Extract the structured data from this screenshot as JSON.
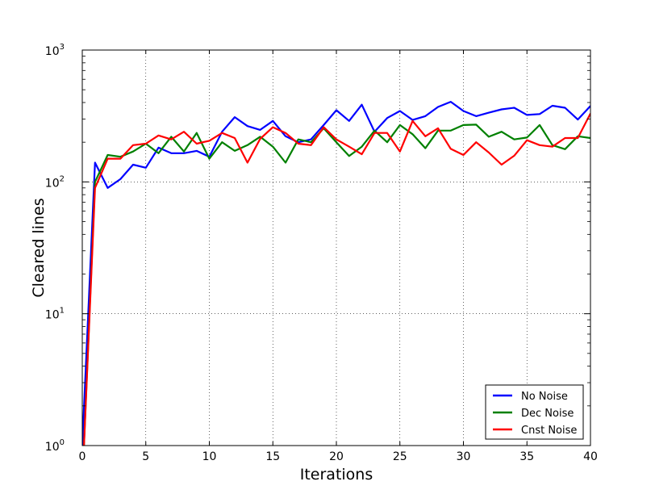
{
  "chart_data": {
    "type": "line",
    "xlabel": "Iterations",
    "ylabel": "Cleared lines",
    "xlim": [
      0,
      40
    ],
    "ylim": [
      1,
      1000
    ],
    "yscale": "log",
    "grid": true,
    "legend_position": "bottom-right",
    "x_ticks": [
      "0",
      "5",
      "10",
      "15",
      "20",
      "25",
      "30",
      "35",
      "40"
    ],
    "y_ticks": [
      {
        "base": "10",
        "exp": "0"
      },
      {
        "base": "10",
        "exp": "1"
      },
      {
        "base": "10",
        "exp": "2"
      },
      {
        "base": "10",
        "exp": "3"
      }
    ],
    "x": [
      0,
      1,
      2,
      3,
      4,
      5,
      6,
      7,
      8,
      9,
      10,
      11,
      12,
      13,
      14,
      15,
      16,
      17,
      18,
      19,
      20,
      21,
      22,
      23,
      24,
      25,
      26,
      27,
      28,
      29,
      30,
      31,
      32,
      33,
      34,
      35,
      36,
      37,
      38,
      39,
      40
    ],
    "series": [
      {
        "name": "No Noise",
        "color": "#0000ff",
        "values": [
          1,
          140,
          90,
          105,
          135,
          128,
          182,
          165,
          165,
          172,
          155,
          240,
          310,
          265,
          248,
          290,
          222,
          200,
          210,
          270,
          350,
          290,
          385,
          240,
          305,
          345,
          295,
          315,
          370,
          405,
          345,
          315,
          335,
          355,
          365,
          322,
          327,
          378,
          365,
          297,
          377
        ]
      },
      {
        "name": "Dec Noise",
        "color": "#008000",
        "values": [
          0.5,
          100,
          160,
          155,
          170,
          195,
          165,
          220,
          170,
          235,
          150,
          200,
          172,
          190,
          220,
          185,
          140,
          210,
          200,
          255,
          200,
          157,
          185,
          245,
          200,
          270,
          230,
          180,
          245,
          245,
          270,
          272,
          220,
          240,
          210,
          217,
          270,
          190,
          177,
          222,
          215
        ]
      },
      {
        "name": "Cnst Noise",
        "color": "#ff0000",
        "values": [
          0.5,
          90,
          150,
          150,
          190,
          195,
          225,
          210,
          240,
          195,
          205,
          235,
          215,
          140,
          212,
          260,
          235,
          195,
          190,
          260,
          210,
          185,
          162,
          235,
          235,
          170,
          290,
          222,
          255,
          178,
          160,
          200,
          167,
          135,
          158,
          207,
          190,
          185,
          215,
          215,
          330
        ]
      }
    ]
  }
}
